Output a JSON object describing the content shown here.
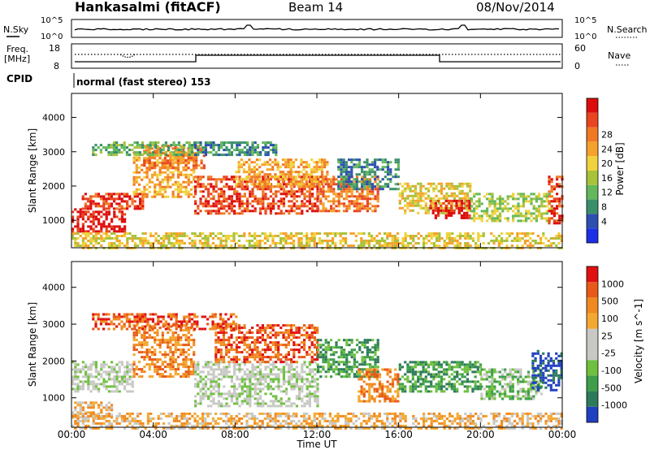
{
  "header": {
    "station": "Hankasalmi (fitACF)",
    "beam": "Beam 14",
    "date": "08/Nov/2014"
  },
  "noise_panel": {
    "left_label": "N.Sky",
    "right_label": "N.Search",
    "left_ticks": [
      "10^5",
      "10^0"
    ],
    "right_ticks": [
      "10^5",
      "10^0"
    ]
  },
  "freq_panel": {
    "left_label_1": "Freq.",
    "left_label_2": "[MHz]",
    "right_label": "Nave",
    "left_ticks": [
      "18",
      "8"
    ],
    "right_ticks": [
      "60",
      "0"
    ]
  },
  "cpid": {
    "label": "CPID",
    "text": "normal (fast stereo) 153"
  },
  "chart_data": [
    {
      "type": "heatmap",
      "title": "",
      "quantity": "Power",
      "colorbar_label": "Power [dB]",
      "ylabel": "Slant Range [km]",
      "xlabel": "Time UT",
      "x_ticks": [
        "00:00",
        "04:00",
        "08:00",
        "12:00",
        "16:00",
        "20:00",
        "00:00"
      ],
      "y_ticks": [
        "1000",
        "2000",
        "3000",
        "4000"
      ],
      "ylim": [
        200,
        4700
      ],
      "xlim_hours": [
        0,
        24
      ],
      "colorbar_ticks": [
        "4",
        "8",
        "12",
        "16",
        "20",
        "24",
        "28"
      ],
      "colorbar_colors": [
        "#1a2fe6",
        "#2c4fb0",
        "#3a8f6a",
        "#62b85a",
        "#a8c23a",
        "#f0d23c",
        "#f5a22c",
        "#f07a24",
        "#e84520",
        "#dd0c0c"
      ],
      "bands": [
        {
          "t0": 0.0,
          "t1": 2.6,
          "r0": 700,
          "r1": 1350,
          "level": 9
        },
        {
          "t0": 0.5,
          "t1": 3.5,
          "r0": 1350,
          "r1": 1800,
          "level": 8
        },
        {
          "t0": 3.0,
          "t1": 6.0,
          "r0": 1700,
          "r1": 3000,
          "level": 6
        },
        {
          "t0": 3.5,
          "t1": 6.5,
          "r0": 2500,
          "r1": 3200,
          "level": 7
        },
        {
          "t0": 6.0,
          "t1": 12.0,
          "r0": 1200,
          "r1": 2300,
          "level": 8
        },
        {
          "t0": 8.0,
          "t1": 12.5,
          "r0": 2000,
          "r1": 2800,
          "level": 6
        },
        {
          "t0": 12.0,
          "t1": 15.0,
          "r0": 1300,
          "r1": 2300,
          "level": 7
        },
        {
          "t0": 13.0,
          "t1": 16.0,
          "r0": 1900,
          "r1": 2800,
          "level": 2
        },
        {
          "t0": 16.0,
          "t1": 19.5,
          "r0": 1200,
          "r1": 2100,
          "level": 5
        },
        {
          "t0": 17.5,
          "t1": 19.5,
          "r0": 1100,
          "r1": 1600,
          "level": 9
        },
        {
          "t0": 19.5,
          "t1": 23.5,
          "r0": 1000,
          "r1": 1800,
          "level": 4
        },
        {
          "t0": 23.3,
          "t1": 24.0,
          "r0": 900,
          "r1": 2300,
          "level": 8
        },
        {
          "t0": 0.0,
          "t1": 24.0,
          "r0": 200,
          "r1": 650,
          "level": 5
        },
        {
          "t0": 1.0,
          "t1": 6.0,
          "r0": 2900,
          "r1": 3300,
          "level": 3
        },
        {
          "t0": 6.0,
          "t1": 10.0,
          "r0": 2900,
          "r1": 3300,
          "level": 2
        }
      ]
    },
    {
      "type": "heatmap",
      "title": "",
      "quantity": "Velocity",
      "colorbar_label": "Velocity [m s^-1]",
      "ylabel": "Slant Range [km]",
      "xlabel": "Time UT",
      "x_ticks": [
        "00:00",
        "04:00",
        "08:00",
        "12:00",
        "16:00",
        "20:00",
        "00:00"
      ],
      "y_ticks": [
        "1000",
        "2000",
        "3000",
        "4000"
      ],
      "ylim": [
        200,
        4700
      ],
      "xlim_hours": [
        0,
        24
      ],
      "colorbar_ticks": [
        "1000",
        "500",
        "100",
        "25",
        "-25",
        "-100",
        "-500",
        "-1000"
      ],
      "colorbar_colors": [
        "#2040c0",
        "#2d7a5a",
        "#3e9e4a",
        "#70c040",
        "#c8c8c4",
        "#c8c8c4",
        "#f4a830",
        "#f08a20",
        "#e85a18",
        "#e01010"
      ],
      "bands": [
        {
          "t0": 0.0,
          "t1": 3.0,
          "r0": 1200,
          "r1": 2000,
          "level": 4
        },
        {
          "t0": 0.0,
          "t1": 2.0,
          "r0": 500,
          "r1": 900,
          "level": 6
        },
        {
          "t0": 3.0,
          "t1": 6.0,
          "r0": 1600,
          "r1": 3000,
          "level": 7
        },
        {
          "t0": 6.0,
          "t1": 12.0,
          "r0": 800,
          "r1": 2000,
          "level": 4
        },
        {
          "t0": 7.0,
          "t1": 12.0,
          "r0": 2000,
          "r1": 3000,
          "level": 8
        },
        {
          "t0": 12.0,
          "t1": 15.0,
          "r0": 1600,
          "r1": 2600,
          "level": 2
        },
        {
          "t0": 14.0,
          "t1": 16.0,
          "r0": 900,
          "r1": 1800,
          "level": 7
        },
        {
          "t0": 16.0,
          "t1": 20.0,
          "r0": 1200,
          "r1": 2000,
          "level": 2
        },
        {
          "t0": 20.0,
          "t1": 23.0,
          "r0": 1000,
          "r1": 1800,
          "level": 3
        },
        {
          "t0": 22.5,
          "t1": 24.0,
          "r0": 1200,
          "r1": 2300,
          "level": 0
        },
        {
          "t0": 0.0,
          "t1": 24.0,
          "r0": 200,
          "r1": 600,
          "level": 6
        },
        {
          "t0": 1.0,
          "t1": 8.0,
          "r0": 2900,
          "r1": 3300,
          "level": 8
        }
      ]
    }
  ]
}
